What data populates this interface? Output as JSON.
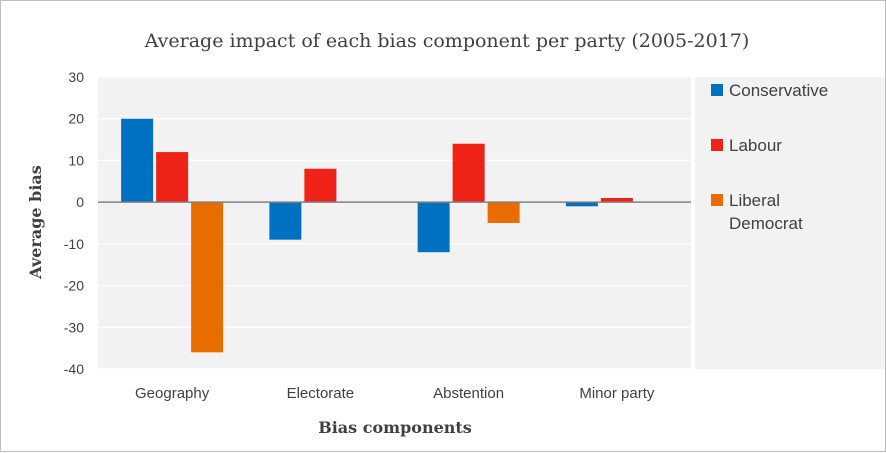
{
  "chart_data": {
    "type": "bar",
    "title": "Average impact of each bias component per party (2005-2017)",
    "xlabel": "Bias components",
    "ylabel": "Average bias",
    "categories": [
      "Geography",
      "Electorate",
      "Abstention",
      "Minor party"
    ],
    "series": [
      {
        "name": "Conservative",
        "color": "#0070c0",
        "values": [
          20,
          -9,
          -12,
          -1
        ]
      },
      {
        "name": "Labour",
        "color": "#ee2216",
        "values": [
          12,
          8,
          14,
          1
        ]
      },
      {
        "name": "Liberal Democrat",
        "color": "#e86c00",
        "values": [
          -36,
          0,
          -5,
          0
        ]
      }
    ],
    "ylim": [
      -40,
      30
    ],
    "yticks": [
      30,
      20,
      10,
      0,
      -10,
      -20,
      -30,
      -40
    ],
    "grid": true,
    "legend_position": "right",
    "colors": {
      "plot_background": "#f2f2f2",
      "gridline": "#ffffff",
      "zero_line": "#808080",
      "text": "#404040"
    }
  }
}
